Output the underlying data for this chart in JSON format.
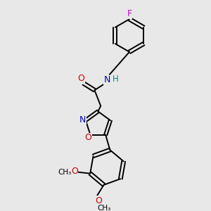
{
  "background_color": "#e8e8e8",
  "figsize": [
    3.0,
    3.0
  ],
  "dpi": 100,
  "atom_colors": {
    "C": "#000000",
    "N": "#0000bb",
    "O": "#cc0000",
    "F": "#cc00cc",
    "H": "#008888"
  },
  "lw": 1.4
}
